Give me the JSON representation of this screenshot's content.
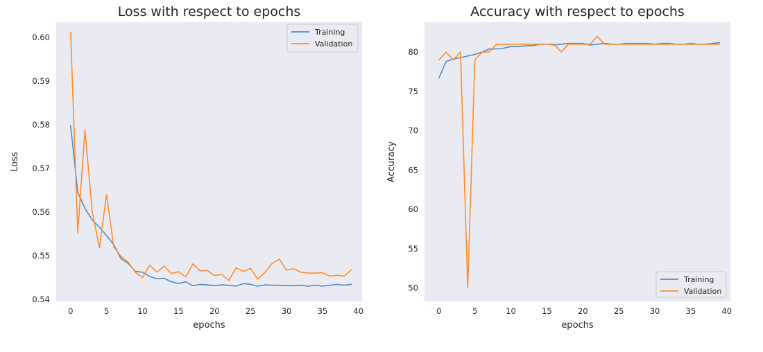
{
  "colors": {
    "training": "#4c8cc4",
    "validation": "#ff8c2a",
    "plot_bg": "#eaeaf2"
  },
  "chart_data": [
    {
      "type": "line",
      "title": "Loss with respect to epochs",
      "xlabel": "epochs",
      "ylabel": "Loss",
      "xlim": [
        -2,
        40.5
      ],
      "ylim": [
        0.5395,
        0.6035
      ],
      "xticks": [
        0,
        5,
        10,
        15,
        20,
        25,
        30,
        35,
        40
      ],
      "yticks": [
        0.54,
        0.55,
        0.56,
        0.57,
        0.58,
        0.59,
        0.6
      ],
      "ytick_labels": [
        "0.54",
        "0.55",
        "0.56",
        "0.57",
        "0.58",
        "0.59",
        "0.60"
      ],
      "grid": false,
      "legend": "top-right",
      "series": [
        {
          "name": "Training",
          "x": [
            0,
            1,
            2,
            3,
            4,
            5,
            6,
            7,
            8,
            9,
            10,
            11,
            12,
            13,
            14,
            15,
            16,
            17,
            18,
            19,
            20,
            21,
            22,
            23,
            24,
            25,
            26,
            27,
            28,
            29,
            30,
            31,
            32,
            33,
            34,
            35,
            36,
            37,
            38,
            39
          ],
          "values": [
            0.5798,
            0.5645,
            0.5608,
            0.5582,
            0.5565,
            0.5546,
            0.5525,
            0.5493,
            0.5482,
            0.5464,
            0.5462,
            0.5452,
            0.5447,
            0.5448,
            0.544,
            0.5436,
            0.544,
            0.5431,
            0.5434,
            0.5433,
            0.5431,
            0.5433,
            0.5432,
            0.543,
            0.5436,
            0.5434,
            0.543,
            0.5433,
            0.5432,
            0.5432,
            0.5431,
            0.5431,
            0.5432,
            0.543,
            0.5432,
            0.543,
            0.5432,
            0.5434,
            0.5432,
            0.5434
          ]
        },
        {
          "name": "Validation",
          "x": [
            0,
            1,
            2,
            3,
            4,
            5,
            6,
            7,
            8,
            9,
            10,
            11,
            12,
            13,
            14,
            15,
            16,
            17,
            18,
            19,
            20,
            21,
            22,
            23,
            24,
            25,
            26,
            27,
            28,
            29,
            30,
            31,
            32,
            33,
            34,
            35,
            36,
            37,
            38,
            39
          ],
          "values": [
            0.6012,
            0.5552,
            0.5788,
            0.5602,
            0.5518,
            0.564,
            0.552,
            0.5498,
            0.5485,
            0.5462,
            0.545,
            0.5478,
            0.5462,
            0.5476,
            0.5459,
            0.5463,
            0.5451,
            0.5481,
            0.5465,
            0.5466,
            0.5454,
            0.5457,
            0.5443,
            0.5472,
            0.5464,
            0.5471,
            0.5446,
            0.5461,
            0.5482,
            0.5492,
            0.5467,
            0.547,
            0.5462,
            0.546,
            0.546,
            0.5461,
            0.5453,
            0.5455,
            0.5453,
            0.5467
          ]
        }
      ]
    },
    {
      "type": "line",
      "title": "Accuracy with respect to epochs",
      "xlabel": "epochs",
      "ylabel": "Accuracy",
      "xlim": [
        -2,
        40.5
      ],
      "ylim": [
        48.3,
        83.8
      ],
      "xticks": [
        0,
        5,
        10,
        15,
        20,
        25,
        30,
        35,
        40
      ],
      "yticks": [
        50,
        55,
        60,
        65,
        70,
        75,
        80
      ],
      "ytick_labels": [
        "50",
        "55",
        "60",
        "65",
        "70",
        "75",
        "80"
      ],
      "grid": false,
      "legend": "bottom-right",
      "series": [
        {
          "name": "Training",
          "x": [
            0,
            1,
            2,
            3,
            4,
            5,
            6,
            7,
            8,
            9,
            10,
            11,
            12,
            13,
            14,
            15,
            16,
            17,
            18,
            19,
            20,
            21,
            22,
            23,
            24,
            25,
            26,
            27,
            28,
            29,
            30,
            31,
            32,
            33,
            34,
            35,
            36,
            37,
            38,
            39
          ],
          "values": [
            76.7,
            78.8,
            79.1,
            79.3,
            79.5,
            79.7,
            80.0,
            80.4,
            80.4,
            80.5,
            80.7,
            80.7,
            80.8,
            80.8,
            81.0,
            81.0,
            80.9,
            81.0,
            81.1,
            81.1,
            81.1,
            80.9,
            81.0,
            81.1,
            81.0,
            81.0,
            81.1,
            81.1,
            81.1,
            81.1,
            81.0,
            81.1,
            81.1,
            81.0,
            81.0,
            81.1,
            81.0,
            81.0,
            81.1,
            81.2
          ]
        },
        {
          "name": "Validation",
          "x": [
            0,
            1,
            2,
            3,
            4,
            5,
            6,
            7,
            8,
            9,
            10,
            11,
            12,
            13,
            14,
            15,
            16,
            17,
            18,
            19,
            20,
            21,
            22,
            23,
            24,
            25,
            26,
            27,
            28,
            29,
            30,
            31,
            32,
            33,
            34,
            35,
            36,
            37,
            38,
            39
          ],
          "values": [
            79.0,
            80.0,
            79.0,
            80.0,
            50.0,
            79.0,
            80.0,
            80.0,
            81.0,
            81.0,
            81.0,
            81.0,
            81.0,
            81.0,
            81.0,
            81.0,
            81.0,
            80.0,
            81.0,
            81.0,
            81.0,
            81.0,
            82.0,
            81.0,
            81.0,
            81.0,
            81.0,
            81.0,
            81.0,
            81.0,
            81.0,
            81.0,
            81.0,
            81.0,
            81.0,
            81.0,
            81.0,
            81.0,
            81.0,
            81.0
          ]
        }
      ]
    }
  ]
}
